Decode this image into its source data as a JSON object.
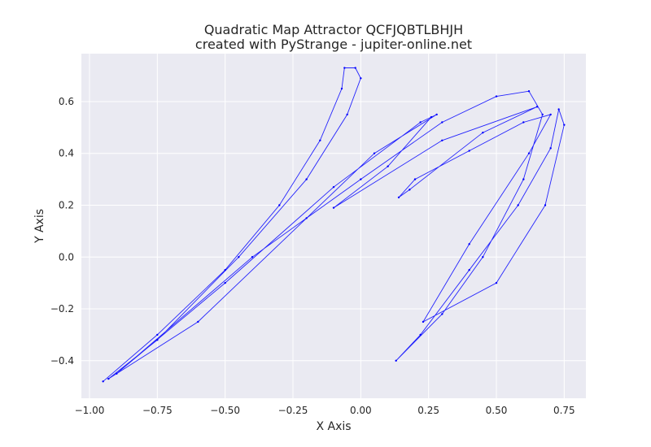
{
  "chart_data": {
    "type": "scatter",
    "title": "Quadratic Map Attractor QCFJQBTLBHJH",
    "subtitle": "created with PyStrange - jupiter-online.net",
    "xlabel": "X Axis",
    "ylabel": "Y Axis",
    "xlim": [
      -1.03,
      0.83
    ],
    "ylim": [
      -0.545,
      0.785
    ],
    "x_ticks": [
      -1.0,
      -0.75,
      -0.5,
      -0.25,
      0.0,
      0.25,
      0.5,
      0.75
    ],
    "x_tick_labels": [
      "−1.00",
      "−0.75",
      "−0.50",
      "−0.25",
      "0.00",
      "0.25",
      "0.50",
      "0.75"
    ],
    "y_ticks": [
      -0.4,
      -0.2,
      0.0,
      0.2,
      0.4,
      0.6
    ],
    "y_tick_labels": [
      "−0.4",
      "−0.2",
      "0.0",
      "0.2",
      "0.4",
      "0.6"
    ],
    "grid": true,
    "legend": "none",
    "marker_color": "#0000ff",
    "background_color": "#eaeaf2",
    "series": [
      {
        "values": [
          {
            "x": -0.95,
            "y": -0.48
          },
          {
            "x": -0.75,
            "y": -0.3
          },
          {
            "x": -0.5,
            "y": -0.05
          },
          {
            "x": -0.3,
            "y": 0.2
          },
          {
            "x": -0.15,
            "y": 0.45
          },
          {
            "x": -0.07,
            "y": 0.65
          },
          {
            "x": -0.06,
            "y": 0.73
          },
          {
            "x": -0.02,
            "y": 0.73
          },
          {
            "x": 0.0,
            "y": 0.69
          },
          {
            "x": -0.05,
            "y": 0.55
          },
          {
            "x": -0.2,
            "y": 0.3
          },
          {
            "x": -0.45,
            "y": 0.0
          },
          {
            "x": -0.75,
            "y": -0.32
          },
          {
            "x": -0.93,
            "y": -0.47
          },
          {
            "x": -0.6,
            "y": -0.25
          },
          {
            "x": -0.2,
            "y": 0.15
          },
          {
            "x": 0.05,
            "y": 0.4
          },
          {
            "x": 0.28,
            "y": 0.55
          },
          {
            "x": 0.22,
            "y": 0.52
          },
          {
            "x": -0.1,
            "y": 0.27
          },
          {
            "x": -0.5,
            "y": -0.1
          },
          {
            "x": -0.9,
            "y": -0.45
          },
          {
            "x": -0.4,
            "y": 0.0
          },
          {
            "x": 0.0,
            "y": 0.3
          },
          {
            "x": 0.3,
            "y": 0.52
          },
          {
            "x": 0.5,
            "y": 0.62
          },
          {
            "x": 0.62,
            "y": 0.64
          },
          {
            "x": 0.67,
            "y": 0.55
          },
          {
            "x": 0.6,
            "y": 0.3
          },
          {
            "x": 0.45,
            "y": 0.0
          },
          {
            "x": 0.3,
            "y": -0.22
          },
          {
            "x": 0.13,
            "y": -0.4
          },
          {
            "x": 0.22,
            "y": -0.3
          },
          {
            "x": 0.4,
            "y": -0.05
          },
          {
            "x": 0.58,
            "y": 0.2
          },
          {
            "x": 0.7,
            "y": 0.42
          },
          {
            "x": 0.73,
            "y": 0.57
          },
          {
            "x": 0.75,
            "y": 0.51
          },
          {
            "x": 0.68,
            "y": 0.2
          },
          {
            "x": 0.5,
            "y": -0.1
          },
          {
            "x": 0.23,
            "y": -0.25
          },
          {
            "x": 0.4,
            "y": 0.05
          },
          {
            "x": 0.62,
            "y": 0.4
          },
          {
            "x": 0.7,
            "y": 0.55
          },
          {
            "x": 0.6,
            "y": 0.52
          },
          {
            "x": 0.4,
            "y": 0.41
          },
          {
            "x": 0.2,
            "y": 0.3
          },
          {
            "x": 0.14,
            "y": 0.23
          },
          {
            "x": 0.18,
            "y": 0.26
          },
          {
            "x": 0.45,
            "y": 0.48
          },
          {
            "x": 0.65,
            "y": 0.58
          },
          {
            "x": 0.3,
            "y": 0.45
          },
          {
            "x": -0.1,
            "y": 0.19
          },
          {
            "x": 0.1,
            "y": 0.35
          },
          {
            "x": 0.26,
            "y": 0.54
          }
        ]
      }
    ]
  }
}
